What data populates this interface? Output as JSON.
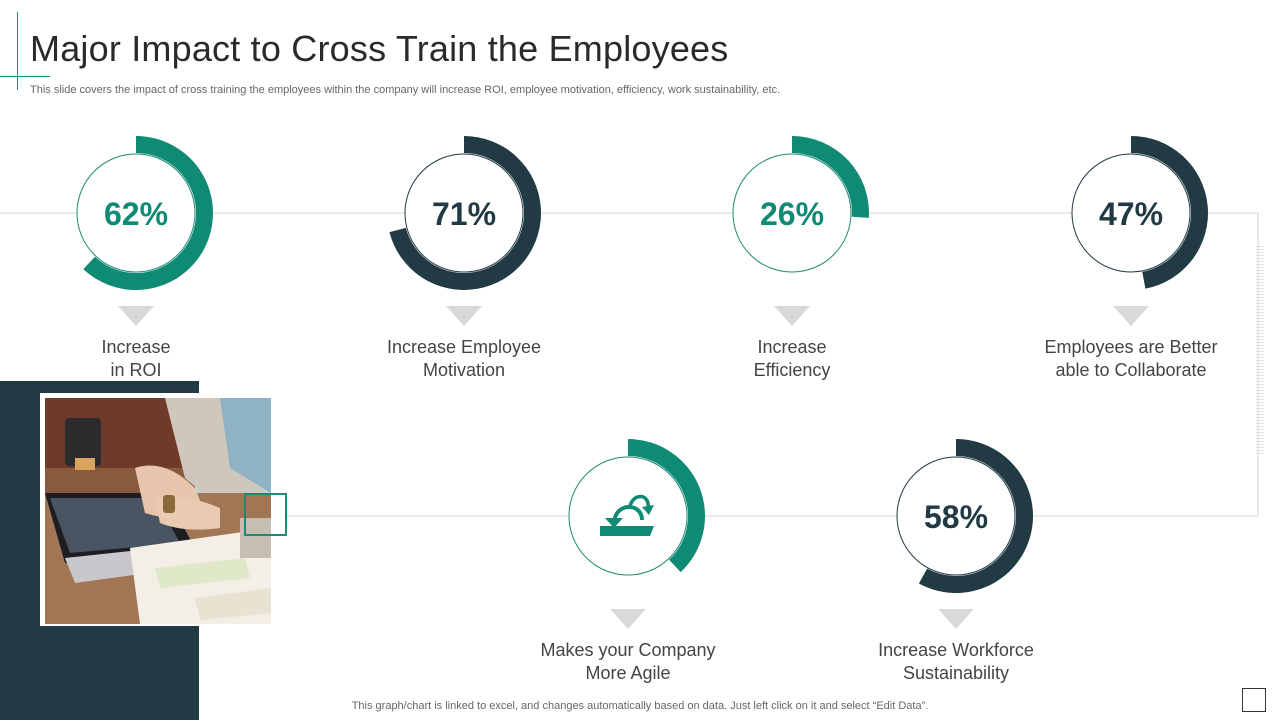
{
  "header": {
    "title": "Major Impact to Cross Train the Employees",
    "subtitle": "This slide covers the impact of cross training the employees within the company will increase ROI, employee motivation, efficiency, work sustainability, etc."
  },
  "footer": {
    "note": "This graph/chart is linked to excel,  and changes automatically based on data. Just left click on it and select “Edit Data”."
  },
  "colors": {
    "teal": "#0f8a74",
    "dark": "#223a44",
    "ring_light": "#1f8a74",
    "ring_dark": "#223a44"
  },
  "icons": {
    "agile": "agile-loop-arrow-icon",
    "photo": "laptop-desk-photo"
  },
  "chart_data": [
    {
      "type": "pie",
      "id": "roi",
      "value_label": "62%",
      "values": [
        62,
        38
      ],
      "color": "teal",
      "label_lines": [
        "Increase",
        "in ROI"
      ]
    },
    {
      "type": "pie",
      "id": "motivation",
      "value_label": "71%",
      "values": [
        71,
        29
      ],
      "color": "dark",
      "label_lines": [
        "Increase Employee",
        "Motivation"
      ]
    },
    {
      "type": "pie",
      "id": "efficiency",
      "value_label": "26%",
      "values": [
        26,
        74
      ],
      "color": "teal",
      "label_lines": [
        "Increase",
        "Efficiency"
      ]
    },
    {
      "type": "pie",
      "id": "collaborate",
      "value_label": "47%",
      "values": [
        47,
        53
      ],
      "color": "dark",
      "label_lines": [
        "Employees are Better",
        "able to Collaborate"
      ]
    },
    {
      "type": "pie",
      "id": "agile",
      "value_label": "",
      "values": [
        38,
        62
      ],
      "color": "teal",
      "icon": "agile-loop-arrow-icon",
      "label_lines": [
        "Makes your Company",
        "More Agile"
      ]
    },
    {
      "type": "pie",
      "id": "sustainability",
      "value_label": "58%",
      "values": [
        58,
        42
      ],
      "color": "dark",
      "label_lines": [
        "Increase Workforce",
        "Sustainability"
      ]
    }
  ]
}
